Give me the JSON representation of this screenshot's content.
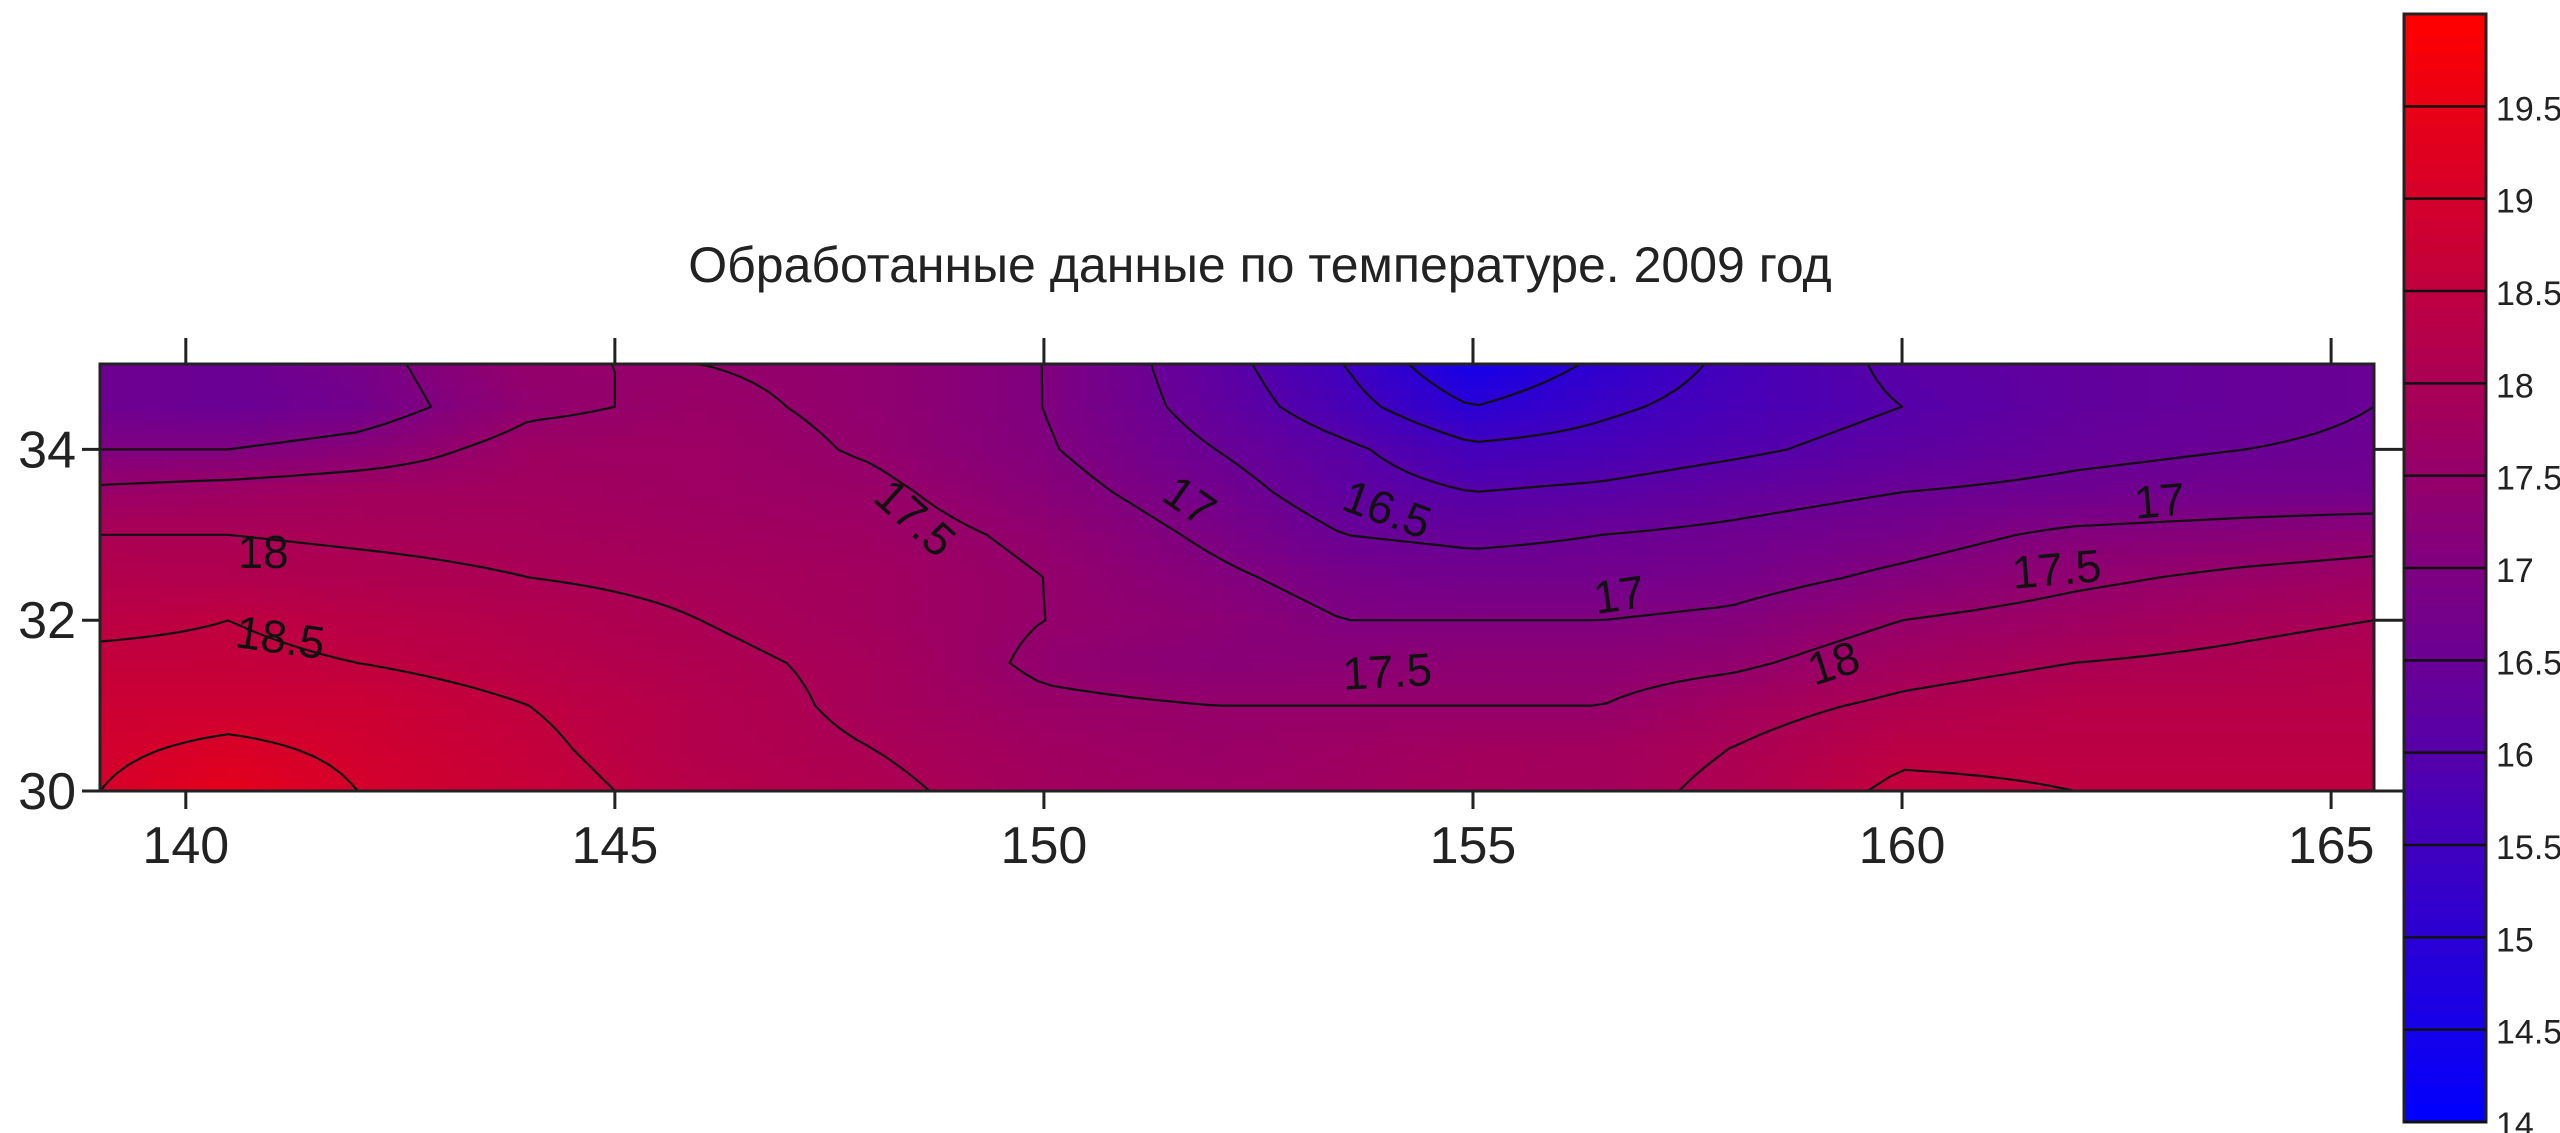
{
  "chart_data": {
    "type": "heatmap",
    "subtype": "filled-contour",
    "title": "Обработанные данные по температуре. 2009 год",
    "x_axis": {
      "range": [
        139,
        165.5
      ],
      "ticks": [
        140,
        145,
        150,
        155,
        160,
        165
      ],
      "tick_labels": [
        "140",
        "145",
        "150",
        "155",
        "160",
        "165"
      ],
      "label": ""
    },
    "y_axis": {
      "range": [
        30,
        35
      ],
      "ticks": [
        30,
        32,
        34
      ],
      "tick_labels": [
        "30",
        "32",
        "34"
      ],
      "label": ""
    },
    "colorbar": {
      "range": [
        14,
        20
      ],
      "placement": "right",
      "ticks": [
        14,
        14.5,
        15,
        15.5,
        16,
        16.5,
        17,
        17.5,
        18,
        18.5,
        19,
        19.5
      ],
      "tick_labels": [
        "14",
        "14.5",
        "15",
        "15.5",
        "16",
        "16.5",
        "17",
        "17.5",
        "18",
        "18.5",
        "19",
        "19.5"
      ],
      "color_low": "#0000ff",
      "color_high": "#ff0000"
    },
    "contour_levels": [
      15,
      15.5,
      16,
      16.5,
      17,
      17.5,
      18,
      18.5,
      19
    ],
    "contour_labels": [
      {
        "text": "18",
        "x": 140.9,
        "y": 32.8,
        "rotate": 0
      },
      {
        "text": "18.5",
        "x": 141.1,
        "y": 31.8,
        "rotate": 8
      },
      {
        "text": "17.5",
        "x": 148.5,
        "y": 33.2,
        "rotate": 42
      },
      {
        "text": "17",
        "x": 151.7,
        "y": 33.4,
        "rotate": 35
      },
      {
        "text": "16.5",
        "x": 154.0,
        "y": 33.3,
        "rotate": 20
      },
      {
        "text": "17",
        "x": 156.7,
        "y": 32.3,
        "rotate": -8
      },
      {
        "text": "17.5",
        "x": 154.0,
        "y": 31.4,
        "rotate": -3
      },
      {
        "text": "18",
        "x": 159.2,
        "y": 31.5,
        "rotate": -18
      },
      {
        "text": "17.5",
        "x": 161.8,
        "y": 32.6,
        "rotate": -5
      },
      {
        "text": "17",
        "x": 163.0,
        "y": 33.4,
        "rotate": -5
      }
    ],
    "grid_points": {
      "x": [
        139,
        140.5,
        142,
        144,
        146,
        148,
        150,
        152,
        153.5,
        155,
        156.5,
        158,
        160,
        162,
        164,
        165.5
      ],
      "y": [
        30,
        30.5,
        31,
        31.5,
        32,
        32.5,
        33,
        33.5,
        34,
        34.5,
        35
      ],
      "values": [
        [
          19.0,
          19.4,
          19.0,
          18.7,
          18.3,
          18.1,
          17.8,
          17.7,
          17.75,
          17.9,
          17.85,
          18.1,
          18.6,
          18.5,
          18.5,
          18.5
        ],
        [
          18.9,
          19.1,
          18.9,
          18.6,
          18.2,
          18.0,
          17.75,
          17.6,
          17.7,
          17.8,
          17.8,
          18.0,
          18.4,
          18.4,
          18.4,
          18.4
        ],
        [
          18.8,
          18.8,
          18.8,
          18.5,
          18.2,
          17.9,
          17.6,
          17.5,
          17.5,
          17.5,
          17.5,
          17.8,
          18.1,
          18.3,
          18.3,
          18.3
        ],
        [
          18.6,
          18.6,
          18.5,
          18.3,
          18.1,
          17.9,
          17.4,
          17.2,
          17.25,
          17.3,
          17.3,
          17.4,
          17.8,
          18.0,
          18.1,
          18.2
        ],
        [
          18.4,
          18.5,
          18.35,
          18.2,
          18.0,
          17.8,
          17.5,
          17.3,
          17.0,
          17.0,
          17.0,
          17.1,
          17.5,
          17.7,
          17.9,
          18.0
        ],
        [
          18.2,
          18.15,
          18.1,
          18.0,
          17.9,
          17.8,
          17.5,
          17.1,
          16.8,
          16.7,
          16.7,
          16.8,
          17.1,
          17.4,
          17.6,
          17.7
        ],
        [
          18.0,
          18.0,
          17.95,
          17.9,
          17.8,
          17.7,
          17.4,
          16.9,
          16.5,
          16.4,
          16.5,
          16.6,
          16.8,
          17.1,
          17.2,
          17.3
        ],
        [
          17.6,
          17.7,
          17.8,
          17.8,
          17.7,
          17.6,
          17.2,
          16.7,
          16.25,
          16.0,
          16.1,
          16.3,
          16.5,
          16.6,
          16.7,
          16.7
        ],
        [
          17.0,
          17.0,
          17.2,
          17.7,
          17.7,
          17.45,
          17.05,
          16.5,
          16.1,
          15.6,
          15.7,
          15.9,
          16.2,
          16.4,
          16.5,
          16.55
        ],
        [
          16.6,
          16.5,
          16.7,
          17.4,
          17.6,
          17.4,
          17.0,
          16.3,
          15.7,
          15.0,
          15.4,
          15.7,
          16.0,
          16.3,
          16.4,
          16.5
        ],
        [
          16.6,
          16.5,
          16.8,
          17.5,
          17.5,
          17.4,
          17.0,
          16.2,
          15.5,
          14.5,
          15.1,
          15.6,
          16.1,
          16.3,
          16.4,
          16.5
        ]
      ]
    }
  }
}
